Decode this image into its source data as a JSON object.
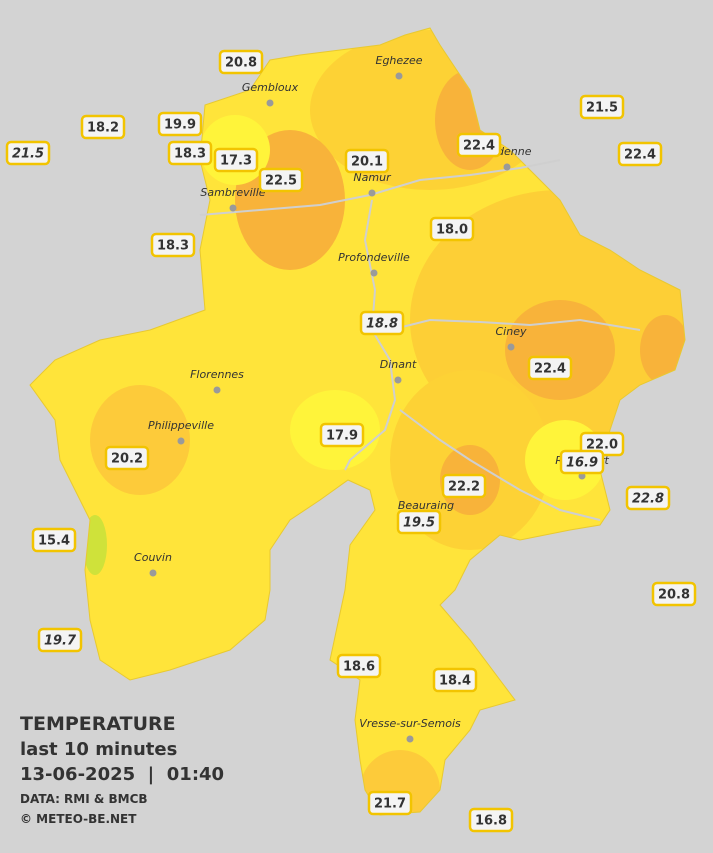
{
  "towns": [
    "Eghezee",
    "Gembloux",
    "Andenne",
    "Namur",
    "Sambreville",
    "Profondeville",
    "Ciney",
    "Dinant",
    "Florennes",
    "Philippeville",
    "Rochefort",
    "Beauraing",
    "Couvin",
    "Vresse-sur-Semois"
  ],
  "stations": [
    {
      "value": "20.8"
    },
    {
      "value": "18.2"
    },
    {
      "value": "19.9"
    },
    {
      "value": "21.5",
      "italic": true
    },
    {
      "value": "18.3"
    },
    {
      "value": "17.3"
    },
    {
      "value": "22.5"
    },
    {
      "value": "20.1"
    },
    {
      "value": "22.4"
    },
    {
      "value": "21.5"
    },
    {
      "value": "22.4"
    },
    {
      "value": "18.3"
    },
    {
      "value": "18.0"
    },
    {
      "value": "18.8",
      "italic": true
    },
    {
      "value": "22.4"
    },
    {
      "value": "17.9"
    },
    {
      "value": "20.2"
    },
    {
      "value": "22.0"
    },
    {
      "value": "16.9",
      "italic": true
    },
    {
      "value": "22.2"
    },
    {
      "value": "22.8",
      "italic": true
    },
    {
      "value": "19.5",
      "italic": true
    },
    {
      "value": "15.4"
    },
    {
      "value": "20.8"
    },
    {
      "value": "19.7",
      "italic": true
    },
    {
      "value": "18.6"
    },
    {
      "value": "18.4"
    },
    {
      "value": "21.7"
    },
    {
      "value": "16.8"
    }
  ],
  "legend": {
    "title": "TEMPERATURE",
    "subtitle": "last 10 minutes",
    "datetime": "13-06-2025  |  01:40",
    "source": "DATA: RMI & BMCB",
    "credit": "© METEO-BE.NET"
  }
}
